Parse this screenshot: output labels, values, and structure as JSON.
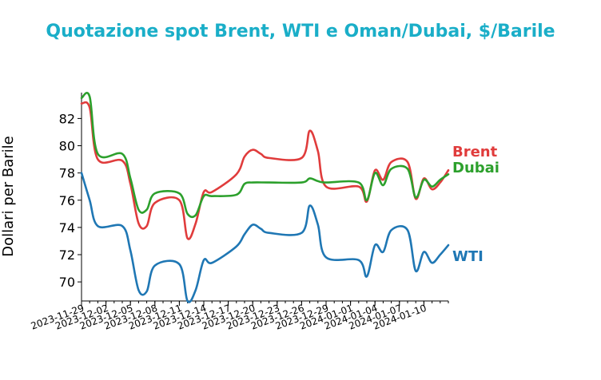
{
  "chart_data": {
    "type": "line",
    "title": "Quotazione spot Brent, WTI e Oman/Dubai, $/Barile",
    "title_color": "#1aaec8",
    "xlabel": "",
    "ylabel": "Dollari per Barile",
    "ylim": [
      68.6,
      83.9
    ],
    "yticks": [
      70,
      72,
      74,
      76,
      78,
      80,
      82
    ],
    "xlim": [
      "2023-11-29",
      "2024-01-13"
    ],
    "xticks": [
      "2023-11-29",
      "2023-12-02",
      "2023-12-05",
      "2023-12-08",
      "2023-12-11",
      "2023-12-14",
      "2023-12-17",
      "2023-12-20",
      "2023-12-23",
      "2023-12-26",
      "2023-12-29",
      "2024-01-01",
      "2024-01-04",
      "2024-01-07",
      "2024-01-10"
    ],
    "grid": false,
    "legend": "none",
    "series": [
      {
        "name": "Brent",
        "color": "#e03c3c",
        "points": [
          [
            "2023-11-29",
            83.1
          ],
          [
            "2023-11-30",
            82.8
          ],
          [
            "2023-12-01",
            79.0
          ],
          [
            "2023-12-04",
            78.9
          ],
          [
            "2023-12-05",
            77.2
          ],
          [
            "2023-12-06",
            74.3
          ],
          [
            "2023-12-07",
            74.1
          ],
          [
            "2023-12-08",
            75.8
          ],
          [
            "2023-12-11",
            76.0
          ],
          [
            "2023-12-12",
            73.2
          ],
          [
            "2023-12-13",
            74.3
          ],
          [
            "2023-12-14",
            76.6
          ],
          [
            "2023-12-15",
            76.6
          ],
          [
            "2023-12-18",
            77.9
          ],
          [
            "2023-12-19",
            79.2
          ],
          [
            "2023-12-20",
            79.7
          ],
          [
            "2023-12-21",
            79.4
          ],
          [
            "2023-12-22",
            79.1
          ],
          [
            "2023-12-26",
            79.1
          ],
          [
            "2023-12-27",
            81.1
          ],
          [
            "2023-12-28",
            79.6
          ],
          [
            "2023-12-29",
            77.0
          ],
          [
            "2024-01-02",
            77.0
          ],
          [
            "2024-01-03",
            75.9
          ],
          [
            "2024-01-04",
            78.2
          ],
          [
            "2024-01-05",
            77.5
          ],
          [
            "2024-01-06",
            78.8
          ],
          [
            "2024-01-08",
            78.8
          ],
          [
            "2024-01-09",
            76.1
          ],
          [
            "2024-01-10",
            77.6
          ],
          [
            "2024-01-11",
            76.8
          ],
          [
            "2024-01-12",
            77.3
          ],
          [
            "2024-01-13",
            78.2
          ]
        ]
      },
      {
        "name": "Dubai",
        "color": "#2ca02c",
        "points": [
          [
            "2023-11-29",
            83.5
          ],
          [
            "2023-11-30",
            83.6
          ],
          [
            "2023-12-01",
            79.4
          ],
          [
            "2023-12-04",
            79.4
          ],
          [
            "2023-12-05",
            77.6
          ],
          [
            "2023-12-06",
            75.3
          ],
          [
            "2023-12-07",
            75.3
          ],
          [
            "2023-12-08",
            76.5
          ],
          [
            "2023-12-11",
            76.5
          ],
          [
            "2023-12-12",
            75.0
          ],
          [
            "2023-12-13",
            74.9
          ],
          [
            "2023-12-14",
            76.3
          ],
          [
            "2023-12-15",
            76.3
          ],
          [
            "2023-12-18",
            76.4
          ],
          [
            "2023-12-19",
            77.2
          ],
          [
            "2023-12-20",
            77.3
          ],
          [
            "2023-12-22",
            77.3
          ],
          [
            "2023-12-26",
            77.3
          ],
          [
            "2023-12-27",
            77.6
          ],
          [
            "2023-12-28",
            77.4
          ],
          [
            "2023-12-29",
            77.3
          ],
          [
            "2024-01-02",
            77.3
          ],
          [
            "2024-01-03",
            76.0
          ],
          [
            "2024-01-04",
            78.0
          ],
          [
            "2024-01-05",
            77.1
          ],
          [
            "2024-01-06",
            78.3
          ],
          [
            "2024-01-08",
            78.3
          ],
          [
            "2024-01-09",
            76.2
          ],
          [
            "2024-01-10",
            77.5
          ],
          [
            "2024-01-11",
            77.0
          ],
          [
            "2024-01-12",
            77.5
          ],
          [
            "2024-01-13",
            77.9
          ]
        ]
      },
      {
        "name": "WTI",
        "color": "#1f77b4",
        "points": [
          [
            "2023-11-29",
            78.0
          ],
          [
            "2023-11-30",
            76.0
          ],
          [
            "2023-12-01",
            74.1
          ],
          [
            "2023-12-04",
            74.1
          ],
          [
            "2023-12-05",
            72.3
          ],
          [
            "2023-12-06",
            69.4
          ],
          [
            "2023-12-07",
            69.3
          ],
          [
            "2023-12-08",
            71.2
          ],
          [
            "2023-12-11",
            71.3
          ],
          [
            "2023-12-12",
            68.6
          ],
          [
            "2023-12-13",
            69.4
          ],
          [
            "2023-12-14",
            71.6
          ],
          [
            "2023-12-15",
            71.4
          ],
          [
            "2023-12-18",
            72.6
          ],
          [
            "2023-12-19",
            73.5
          ],
          [
            "2023-12-20",
            74.2
          ],
          [
            "2023-12-21",
            73.9
          ],
          [
            "2023-12-22",
            73.6
          ],
          [
            "2023-12-26",
            73.6
          ],
          [
            "2023-12-27",
            75.6
          ],
          [
            "2023-12-28",
            74.2
          ],
          [
            "2023-12-29",
            71.8
          ],
          [
            "2024-01-02",
            71.6
          ],
          [
            "2024-01-03",
            70.4
          ],
          [
            "2024-01-04",
            72.7
          ],
          [
            "2024-01-05",
            72.2
          ],
          [
            "2024-01-06",
            73.8
          ],
          [
            "2024-01-08",
            73.8
          ],
          [
            "2024-01-09",
            70.8
          ],
          [
            "2024-01-10",
            72.2
          ],
          [
            "2024-01-11",
            71.4
          ],
          [
            "2024-01-12",
            72.0
          ],
          [
            "2024-01-13",
            72.7
          ]
        ]
      }
    ]
  }
}
